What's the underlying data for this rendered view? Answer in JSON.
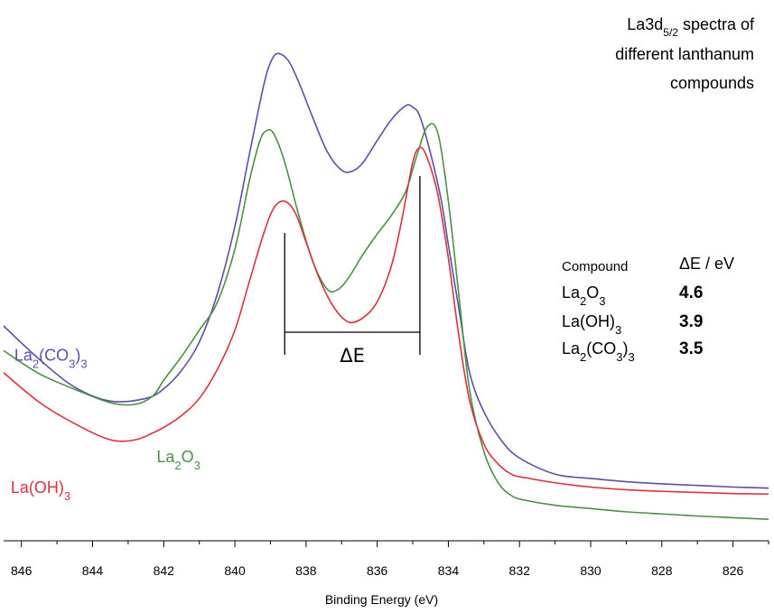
{
  "chart_data": {
    "type": "line",
    "xlabel": "Binding Energy (eV)",
    "xlim": [
      846.5,
      825
    ],
    "x_ticks": [
      846,
      844,
      842,
      840,
      838,
      836,
      834,
      832,
      830,
      828,
      826
    ],
    "ylim": [
      0,
      100
    ],
    "y_axis_labels": false,
    "grid": false,
    "annotation": {
      "prefix": "La3d",
      "subscript": "5/2",
      "suffix": " spectra of",
      "line2": "different lanthanum",
      "line3": "compounds"
    },
    "delta_e_label": "ΔE",
    "delta_e_markers": [
      838.6,
      834.8
    ],
    "table": {
      "header_compound": "Compound",
      "header_delta": "ΔE / eV",
      "rows": [
        {
          "formula": [
            [
              "La",
              false
            ],
            [
              "2",
              true
            ],
            [
              "O",
              false
            ],
            [
              "3",
              true
            ]
          ],
          "value": "4.6"
        },
        {
          "formula": [
            [
              "La(OH)",
              false
            ],
            [
              "3",
              true
            ]
          ],
          "value": "3.9"
        },
        {
          "formula": [
            [
              "La",
              false
            ],
            [
              "2",
              true
            ],
            [
              "(CO",
              false
            ],
            [
              "3",
              true
            ],
            [
              ")",
              false
            ],
            [
              "3",
              true
            ]
          ],
          "value": "3.5"
        }
      ]
    },
    "series": [
      {
        "key": "la2co33",
        "formula": [
          [
            "La",
            false
          ],
          [
            "2",
            true
          ],
          [
            "(CO",
            false
          ],
          [
            "3",
            true
          ],
          [
            ")",
            false
          ],
          [
            "3",
            true
          ]
        ],
        "color": "#5b4fa8",
        "x": [
          846.5,
          845.5,
          844.5,
          843.5,
          842.5,
          842.0,
          841.5,
          841.0,
          840.5,
          840.0,
          839.6,
          839.2,
          839.0,
          838.8,
          838.5,
          838.2,
          837.8,
          837.4,
          837.0,
          836.7,
          836.4,
          836.0,
          835.6,
          835.2,
          835.0,
          834.8,
          834.5,
          834.2,
          834.0,
          833.7,
          833.4,
          833.0,
          832.5,
          832.0,
          831.0,
          830.0,
          829.0,
          828.0,
          827.0,
          826.0,
          825.0
        ],
        "y": [
          40.0,
          33.8,
          28.6,
          26.0,
          26.5,
          28.3,
          31.7,
          37.0,
          45.8,
          58.5,
          71.7,
          84.5,
          89.0,
          90.7,
          89.4,
          85.3,
          78.6,
          72.4,
          69.0,
          68.8,
          70.4,
          74.5,
          78.4,
          81.0,
          80.7,
          79.0,
          72.1,
          63.4,
          55.1,
          43.0,
          31.2,
          24.0,
          18.6,
          15.4,
          12.4,
          11.6,
          11.0,
          10.6,
          10.3,
          10.0,
          9.8
        ]
      },
      {
        "key": "la2o3",
        "formula": [
          [
            "La",
            false
          ],
          [
            "2",
            true
          ],
          [
            "O",
            false
          ],
          [
            "3",
            true
          ]
        ],
        "color": "#4a9144",
        "x": [
          846.5,
          845.5,
          844.5,
          843.5,
          842.8,
          842.3,
          842.0,
          841.5,
          841.0,
          840.5,
          840.0,
          839.6,
          839.3,
          839.1,
          838.9,
          838.6,
          838.2,
          837.8,
          837.4,
          837.1,
          836.8,
          836.4,
          836.0,
          835.6,
          835.2,
          834.9,
          834.6,
          834.3,
          834.0,
          833.7,
          833.4,
          833.0,
          832.6,
          832.2,
          831.8,
          831.0,
          830.0,
          829.0,
          828.0,
          827.0,
          826.0,
          825.0
        ],
        "y": [
          35.4,
          31.1,
          28.2,
          25.7,
          25.4,
          27.0,
          29.9,
          34.3,
          39.2,
          44.3,
          54.3,
          66.8,
          74.4,
          76.4,
          75.7,
          70.5,
          60.5,
          51.8,
          46.8,
          46.8,
          49.0,
          53.3,
          57.1,
          60.6,
          65.0,
          71.4,
          77.0,
          76.0,
          63.2,
          45.4,
          27.9,
          16.6,
          10.8,
          8.3,
          7.5,
          6.6,
          6.0,
          5.4,
          5.0,
          4.6,
          4.3,
          4.0
        ]
      },
      {
        "key": "laoh3",
        "formula": [
          [
            "La(OH)",
            false
          ],
          [
            "3",
            true
          ]
        ],
        "color": "#d9323e",
        "x": [
          846.5,
          845.5,
          844.5,
          843.5,
          842.8,
          842.3,
          842.0,
          841.5,
          841.0,
          840.5,
          840.0,
          839.6,
          839.2,
          838.9,
          838.6,
          838.3,
          838.0,
          837.6,
          837.2,
          836.8,
          836.4,
          836.0,
          835.6,
          835.3,
          835.0,
          834.8,
          834.6,
          834.3,
          834.0,
          833.7,
          833.4,
          833.0,
          832.6,
          832.2,
          831.8,
          831.0,
          830.0,
          829.0,
          828.0,
          827.0,
          826.0,
          825.0
        ],
        "y": [
          31.3,
          25.8,
          21.8,
          18.8,
          18.8,
          20.1,
          21.1,
          23.3,
          26.5,
          31.8,
          39.2,
          48.1,
          57.0,
          62.0,
          63.2,
          61.0,
          55.6,
          48.4,
          43.3,
          40.7,
          41.5,
          44.5,
          51.2,
          60.0,
          70.5,
          73.2,
          71.4,
          64.6,
          52.6,
          37.9,
          26.0,
          18.0,
          14.3,
          12.3,
          11.7,
          10.8,
          10.0,
          9.5,
          9.2,
          9.0,
          8.8,
          8.7
        ]
      }
    ],
    "series_labels": [
      {
        "key": "la2co33",
        "x": 846.2,
        "y": 33.5
      },
      {
        "key": "la2o3",
        "x": 842.2,
        "y": 14.6
      },
      {
        "key": "laoh3",
        "x": 846.3,
        "y": 8.9
      }
    ],
    "colors": {
      "axis": "#000000",
      "bracket": "#000000"
    }
  }
}
